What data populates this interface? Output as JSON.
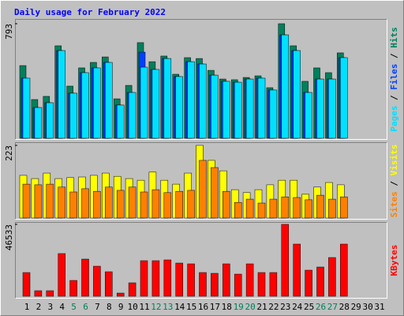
{
  "chart_data": [
    {
      "type": "bar",
      "title": "Daily usage for February 2022",
      "ylim": [
        0,
        793
      ],
      "yticks": [
        793
      ],
      "series": [
        {
          "name": "Hits",
          "color": "#00805c",
          "values": [
            503,
            268,
            290,
            640,
            361,
            487,
            525,
            563,
            273,
            366,
            662,
            530,
            569,
            443,
            558,
            552,
            470,
            410,
            405,
            421,
            432,
            350,
            793,
            640,
            394,
            487,
            454,
            591,
            null,
            null,
            null
          ]
        },
        {
          "name": "Files",
          "color": "#0040ff",
          "values": [
            416,
            213,
            246,
            607,
            312,
            454,
            487,
            525,
            230,
            317,
            596,
            476,
            552,
            427,
            530,
            514,
            437,
            394,
            388,
            410,
            416,
            334,
            716,
            607,
            317,
            410,
            410,
            558,
            null,
            null,
            null
          ]
        },
        {
          "name": "Pages",
          "color": "#00e0ff",
          "values": [
            416,
            213,
            246,
            607,
            312,
            454,
            487,
            525,
            230,
            317,
            492,
            476,
            552,
            427,
            530,
            514,
            437,
            394,
            388,
            410,
            416,
            334,
            716,
            607,
            317,
            410,
            410,
            558,
            null,
            null,
            null
          ]
        }
      ]
    },
    {
      "type": "bar",
      "ylim": [
        0,
        223
      ],
      "yticks": [
        223
      ],
      "series": [
        {
          "name": "Visits",
          "color": "#ffff00",
          "values": [
            131,
            121,
            138,
            121,
            124,
            126,
            131,
            138,
            128,
            121,
            116,
            141,
            116,
            104,
            138,
            223,
            177,
            145,
            87,
            78,
            87,
            102,
            116,
            116,
            73,
            95,
            109,
            102,
            null,
            null,
            null
          ]
        },
        {
          "name": "Sites",
          "color": "#ff8000",
          "values": [
            104,
            102,
            104,
            95,
            80,
            90,
            82,
            95,
            85,
            95,
            80,
            87,
            78,
            82,
            85,
            177,
            155,
            82,
            48,
            58,
            46,
            58,
            65,
            63,
            56,
            70,
            58,
            65,
            null,
            null,
            null
          ]
        }
      ]
    },
    {
      "type": "bar",
      "ylim": [
        0,
        46533
      ],
      "yticks": [
        46533
      ],
      "categories": [
        "1",
        "2",
        "3",
        "4",
        "5",
        "6",
        "7",
        "8",
        "9",
        "10",
        "11",
        "12",
        "13",
        "14",
        "15",
        "16",
        "17",
        "18",
        "19",
        "20",
        "21",
        "22",
        "23",
        "24",
        "25",
        "26",
        "27",
        "28",
        "29",
        "30",
        "31"
      ],
      "label_colors": [
        "#000000",
        "#000000",
        "#000000",
        "#000000",
        "#00805c",
        "#00805c",
        "#000000",
        "#000000",
        "#000000",
        "#000000",
        "#000000",
        "#00805c",
        "#00805c",
        "#000000",
        "#000000",
        "#000000",
        "#000000",
        "#000000",
        "#00805c",
        "#00805c",
        "#000000",
        "#000000",
        "#000000",
        "#000000",
        "#000000",
        "#00805c",
        "#00805c",
        "#000000",
        "#000000",
        "#000000",
        "#000000"
      ],
      "series": [
        {
          "name": "KBytes",
          "color": "#ff0000",
          "values": [
            15335,
            3579,
            3579,
            27616,
            10228,
            24036,
            19433,
            15852,
            2045,
            8694,
            23011,
            23011,
            23523,
            21478,
            20966,
            15341,
            14830,
            20966,
            14318,
            20966,
            15341,
            15341,
            46533,
            33751,
            16874,
            18920,
            25057,
            33751,
            null,
            null,
            null
          ]
        }
      ]
    }
  ]
}
